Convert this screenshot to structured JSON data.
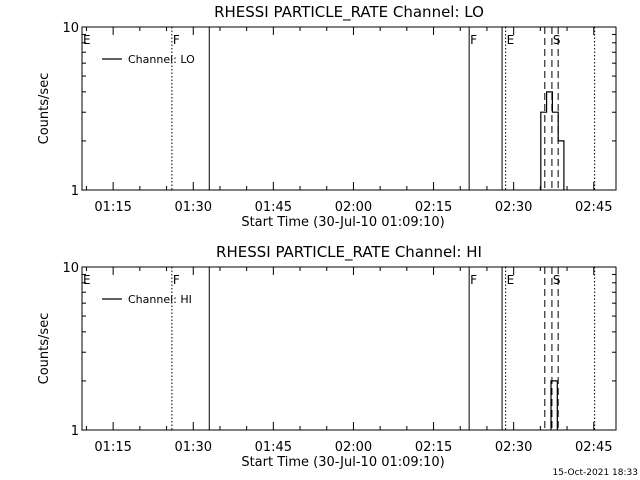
{
  "footer": {
    "timestamp": "15-Oct-2021 18:33"
  },
  "chart_data": [
    {
      "type": "line",
      "title": "RHESSI PARTICLE_RATE Channel: LO",
      "xlabel": "Start Time (30-Jul-10 01:09:10)",
      "ylabel": "Counts/sec",
      "y_scale": "log",
      "ylim": [
        1,
        10
      ],
      "y_tick_labels": [
        "1",
        "10"
      ],
      "xlim": [
        "01:09:10",
        "02:49:10"
      ],
      "x_ticks": [
        "01:15",
        "01:30",
        "01:45",
        "02:00",
        "02:15",
        "02:30",
        "02:45"
      ],
      "legend": {
        "placement": "top-left",
        "entries": [
          "Channel: LO"
        ]
      },
      "series": [
        {
          "name": "Channel: LO",
          "points": [
            [
              "02:35:05",
              1
            ],
            [
              "02:35:05",
              3
            ],
            [
              "02:36:10",
              3
            ],
            [
              "02:36:10",
              4
            ],
            [
              "02:37:15",
              4
            ],
            [
              "02:37:15",
              3
            ],
            [
              "02:38:20",
              3
            ],
            [
              "02:38:20",
              2
            ],
            [
              "02:39:25",
              2
            ],
            [
              "02:39:25",
              1
            ]
          ]
        }
      ],
      "markers": [
        {
          "label": "E",
          "time": "01:09:10",
          "style": "none"
        },
        {
          "label": "F",
          "time": "01:26:00",
          "style": "dotted"
        },
        {
          "label": "",
          "time": "01:33:00",
          "style": "solid"
        },
        {
          "label": "F",
          "time": "02:21:40",
          "style": "solid"
        },
        {
          "label": "",
          "time": "02:27:50",
          "style": "solid"
        },
        {
          "label": "E",
          "time": "02:28:30",
          "style": "dotted"
        },
        {
          "label": "",
          "time": "02:35:50",
          "style": "dashed"
        },
        {
          "label": "S",
          "time": "02:37:10",
          "style": "dashed"
        },
        {
          "label": "",
          "time": "02:38:20",
          "style": "dashed"
        },
        {
          "label": "",
          "time": "02:45:10",
          "style": "dotted"
        }
      ]
    },
    {
      "type": "line",
      "title": "RHESSI PARTICLE_RATE Channel: HI",
      "xlabel": "Start Time (30-Jul-10 01:09:10)",
      "ylabel": "Counts/sec",
      "y_scale": "log",
      "ylim": [
        1,
        10
      ],
      "y_tick_labels": [
        "1",
        "10"
      ],
      "xlim": [
        "01:09:10",
        "02:49:10"
      ],
      "x_ticks": [
        "01:15",
        "01:30",
        "01:45",
        "02:00",
        "02:15",
        "02:30",
        "02:45"
      ],
      "legend": {
        "placement": "top-left",
        "entries": [
          "Channel: HI"
        ]
      },
      "series": [
        {
          "name": "Channel: HI",
          "points": [
            [
              "02:37:00",
              1
            ],
            [
              "02:37:00",
              2
            ],
            [
              "02:38:10",
              2
            ],
            [
              "02:38:10",
              1
            ]
          ]
        }
      ],
      "markers": [
        {
          "label": "E",
          "time": "01:09:10",
          "style": "none"
        },
        {
          "label": "F",
          "time": "01:26:00",
          "style": "dotted"
        },
        {
          "label": "",
          "time": "01:33:00",
          "style": "solid"
        },
        {
          "label": "F",
          "time": "02:21:40",
          "style": "solid"
        },
        {
          "label": "",
          "time": "02:27:50",
          "style": "solid"
        },
        {
          "label": "E",
          "time": "02:28:30",
          "style": "dotted"
        },
        {
          "label": "",
          "time": "02:35:50",
          "style": "dashed"
        },
        {
          "label": "S",
          "time": "02:37:10",
          "style": "dashed"
        },
        {
          "label": "",
          "time": "02:38:20",
          "style": "dashed"
        },
        {
          "label": "",
          "time": "02:45:10",
          "style": "dotted"
        }
      ]
    }
  ]
}
